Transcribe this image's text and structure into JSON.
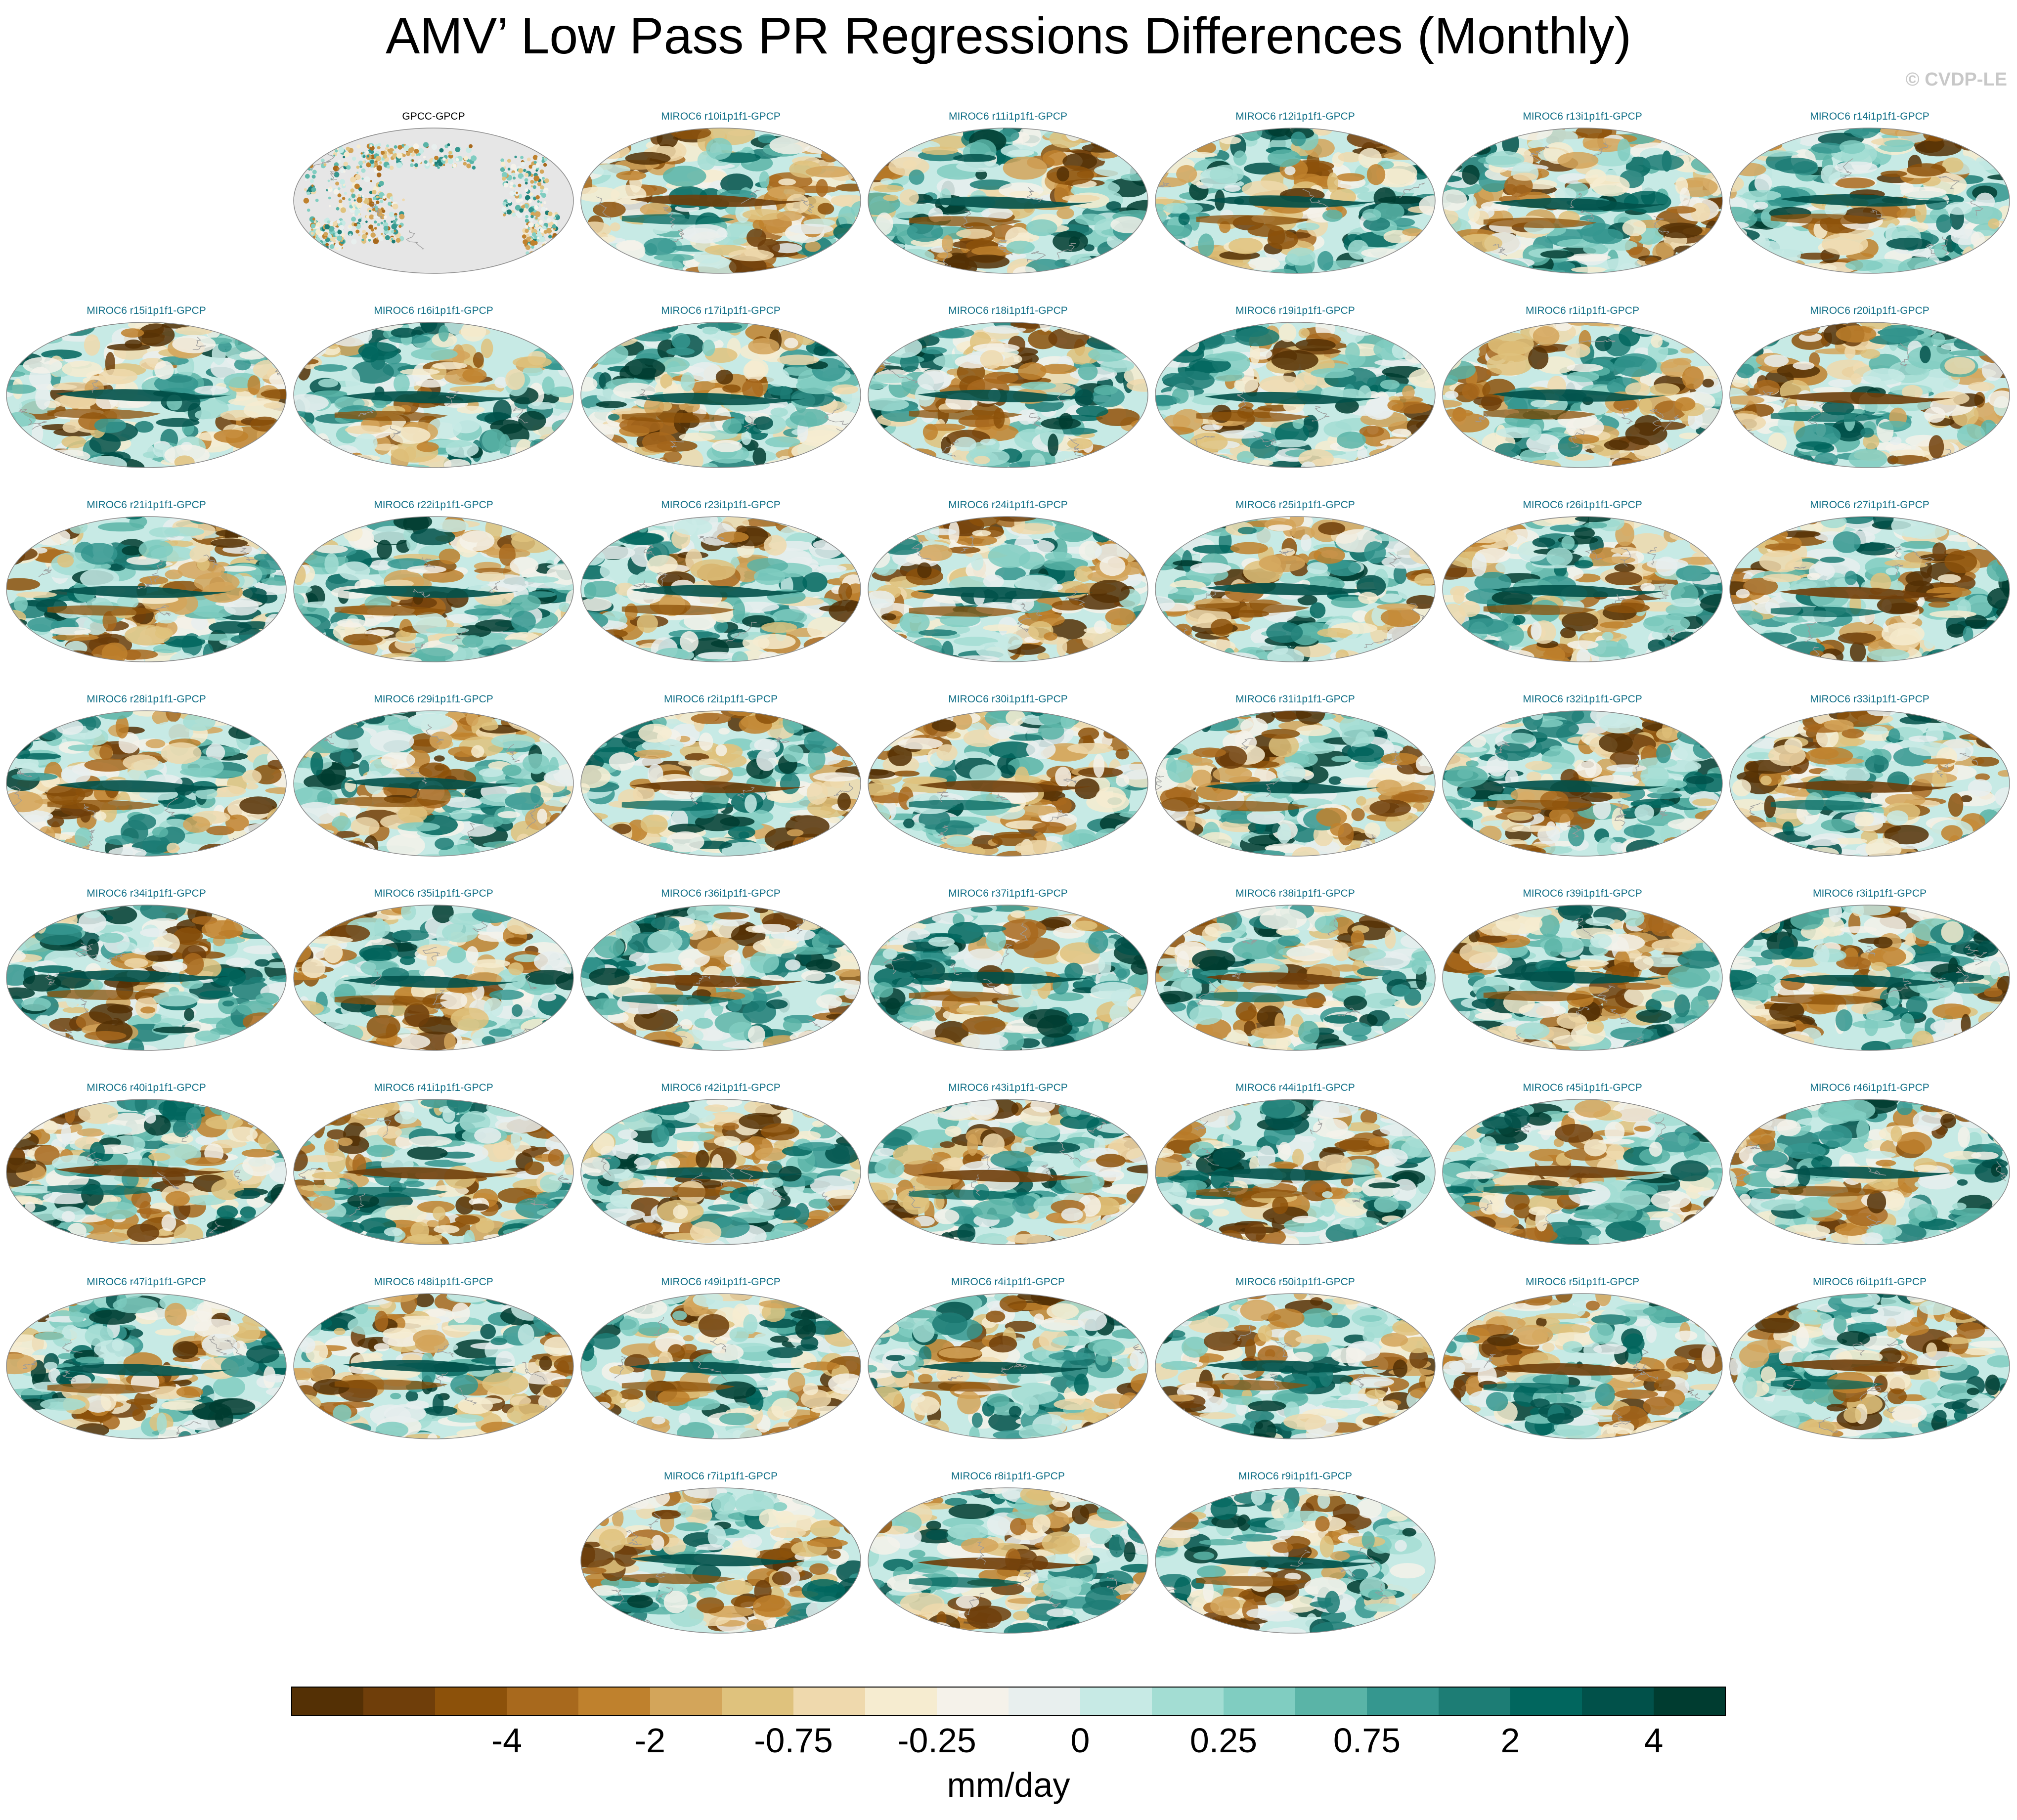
{
  "title": "AMV’ Low Pass PR Regressions Differences (Monthly)",
  "watermark": "© CVDP-LE",
  "chart_data": {
    "type": "heatmap",
    "description_kind": "map-panels",
    "panels": [
      {
        "label": "GPCC-GPCP",
        "row": 0,
        "col": 1,
        "kind": "obs"
      },
      {
        "label": "MIROC6 r10i1p1f1-GPCP",
        "row": 0,
        "col": 2
      },
      {
        "label": "MIROC6 r11i1p1f1-GPCP",
        "row": 0,
        "col": 3
      },
      {
        "label": "MIROC6 r12i1p1f1-GPCP",
        "row": 0,
        "col": 4
      },
      {
        "label": "MIROC6 r13i1p1f1-GPCP",
        "row": 0,
        "col": 5
      },
      {
        "label": "MIROC6 r14i1p1f1-GPCP",
        "row": 0,
        "col": 6
      },
      {
        "label": "MIROC6 r15i1p1f1-GPCP",
        "row": 1,
        "col": 0
      },
      {
        "label": "MIROC6 r16i1p1f1-GPCP",
        "row": 1,
        "col": 1
      },
      {
        "label": "MIROC6 r17i1p1f1-GPCP",
        "row": 1,
        "col": 2
      },
      {
        "label": "MIROC6 r18i1p1f1-GPCP",
        "row": 1,
        "col": 3
      },
      {
        "label": "MIROC6 r19i1p1f1-GPCP",
        "row": 1,
        "col": 4
      },
      {
        "label": "MIROC6 r1i1p1f1-GPCP",
        "row": 1,
        "col": 5
      },
      {
        "label": "MIROC6 r20i1p1f1-GPCP",
        "row": 1,
        "col": 6
      },
      {
        "label": "MIROC6 r21i1p1f1-GPCP",
        "row": 2,
        "col": 0
      },
      {
        "label": "MIROC6 r22i1p1f1-GPCP",
        "row": 2,
        "col": 1
      },
      {
        "label": "MIROC6 r23i1p1f1-GPCP",
        "row": 2,
        "col": 2
      },
      {
        "label": "MIROC6 r24i1p1f1-GPCP",
        "row": 2,
        "col": 3
      },
      {
        "label": "MIROC6 r25i1p1f1-GPCP",
        "row": 2,
        "col": 4
      },
      {
        "label": "MIROC6 r26i1p1f1-GPCP",
        "row": 2,
        "col": 5
      },
      {
        "label": "MIROC6 r27i1p1f1-GPCP",
        "row": 2,
        "col": 6
      },
      {
        "label": "MIROC6 r28i1p1f1-GPCP",
        "row": 3,
        "col": 0
      },
      {
        "label": "MIROC6 r29i1p1f1-GPCP",
        "row": 3,
        "col": 1
      },
      {
        "label": "MIROC6 r2i1p1f1-GPCP",
        "row": 3,
        "col": 2
      },
      {
        "label": "MIROC6 r30i1p1f1-GPCP",
        "row": 3,
        "col": 3
      },
      {
        "label": "MIROC6 r31i1p1f1-GPCP",
        "row": 3,
        "col": 4
      },
      {
        "label": "MIROC6 r32i1p1f1-GPCP",
        "row": 3,
        "col": 5
      },
      {
        "label": "MIROC6 r33i1p1f1-GPCP",
        "row": 3,
        "col": 6
      },
      {
        "label": "MIROC6 r34i1p1f1-GPCP",
        "row": 4,
        "col": 0
      },
      {
        "label": "MIROC6 r35i1p1f1-GPCP",
        "row": 4,
        "col": 1
      },
      {
        "label": "MIROC6 r36i1p1f1-GPCP",
        "row": 4,
        "col": 2
      },
      {
        "label": "MIROC6 r37i1p1f1-GPCP",
        "row": 4,
        "col": 3
      },
      {
        "label": "MIROC6 r38i1p1f1-GPCP",
        "row": 4,
        "col": 4
      },
      {
        "label": "MIROC6 r39i1p1f1-GPCP",
        "row": 4,
        "col": 5
      },
      {
        "label": "MIROC6 r3i1p1f1-GPCP",
        "row": 4,
        "col": 6
      },
      {
        "label": "MIROC6 r40i1p1f1-GPCP",
        "row": 5,
        "col": 0
      },
      {
        "label": "MIROC6 r41i1p1f1-GPCP",
        "row": 5,
        "col": 1
      },
      {
        "label": "MIROC6 r42i1p1f1-GPCP",
        "row": 5,
        "col": 2
      },
      {
        "label": "MIROC6 r43i1p1f1-GPCP",
        "row": 5,
        "col": 3
      },
      {
        "label": "MIROC6 r44i1p1f1-GPCP",
        "row": 5,
        "col": 4
      },
      {
        "label": "MIROC6 r45i1p1f1-GPCP",
        "row": 5,
        "col": 5
      },
      {
        "label": "MIROC6 r46i1p1f1-GPCP",
        "row": 5,
        "col": 6
      },
      {
        "label": "MIROC6 r47i1p1f1-GPCP",
        "row": 6,
        "col": 0
      },
      {
        "label": "MIROC6 r48i1p1f1-GPCP",
        "row": 6,
        "col": 1
      },
      {
        "label": "MIROC6 r49i1p1f1-GPCP",
        "row": 6,
        "col": 2
      },
      {
        "label": "MIROC6 r4i1p1f1-GPCP",
        "row": 6,
        "col": 3
      },
      {
        "label": "MIROC6 r50i1p1f1-GPCP",
        "row": 6,
        "col": 4
      },
      {
        "label": "MIROC6 r5i1p1f1-GPCP",
        "row": 6,
        "col": 5
      },
      {
        "label": "MIROC6 r6i1p1f1-GPCP",
        "row": 6,
        "col": 6
      },
      {
        "label": "MIROC6 r7i1p1f1-GPCP",
        "row": 7,
        "col": 2
      },
      {
        "label": "MIROC6 r8i1p1f1-GPCP",
        "row": 7,
        "col": 3
      },
      {
        "label": "MIROC6 r9i1p1f1-GPCP",
        "row": 7,
        "col": 4
      }
    ],
    "colorbar": {
      "label": "mm/day",
      "tick_labels": [
        "-4",
        "-2",
        "-0.75",
        "-0.25",
        "0",
        "0.25",
        "0.75",
        "2",
        "4"
      ],
      "colors": [
        "#543005",
        "#6f3e0a",
        "#8c510a",
        "#a8691d",
        "#bf812d",
        "#d3a55a",
        "#dfc27d",
        "#efd9ad",
        "#f6ecd0",
        "#f5f2ea",
        "#e8efee",
        "#c7eae5",
        "#a3ddd3",
        "#80cdc1",
        "#5ab4a7",
        "#35978f",
        "#1d7d75",
        "#01665e",
        "#01514a",
        "#003c30"
      ]
    }
  }
}
